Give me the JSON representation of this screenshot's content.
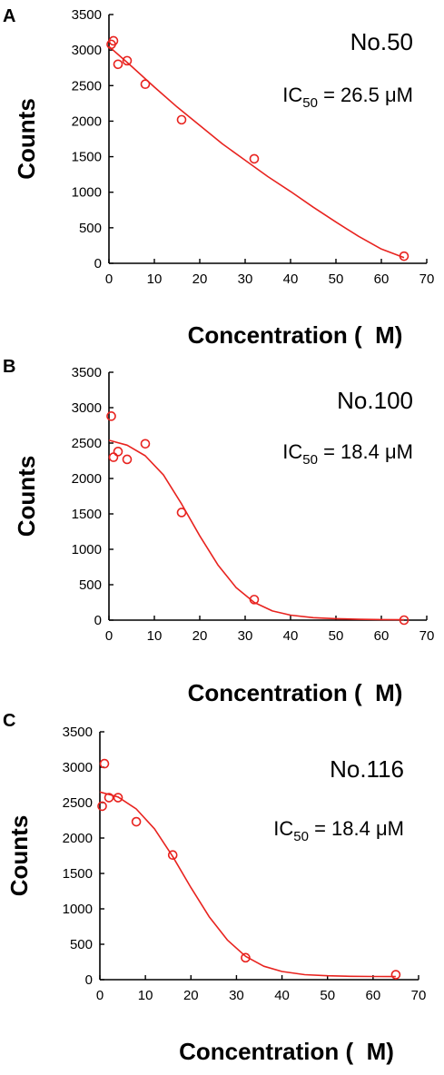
{
  "chart_data": [
    {
      "panel": "A",
      "type": "scatter",
      "title": "No.50",
      "ic50_prefix": "IC",
      "ic50_sub": "50",
      "ic50_value": " = 26.5 μM",
      "xlabel": "Concentration (  M)",
      "ylabel": "Counts",
      "xlim": [
        0,
        70
      ],
      "ylim": [
        0,
        3500
      ],
      "xticks": [
        0,
        10,
        20,
        30,
        40,
        50,
        60,
        70
      ],
      "yticks": [
        0,
        500,
        1000,
        1500,
        2000,
        2500,
        3000,
        3500
      ],
      "series": [
        {
          "points": [
            [
              0.5,
              3080
            ],
            [
              1,
              3130
            ],
            [
              2,
              2800
            ],
            [
              4,
              2850
            ],
            [
              8,
              2520
            ],
            [
              16,
              2020
            ],
            [
              32,
              1470
            ],
            [
              65,
              100
            ]
          ],
          "fit": [
            [
              0,
              3050
            ],
            [
              5,
              2770
            ],
            [
              10,
              2480
            ],
            [
              15,
              2200
            ],
            [
              20,
              1940
            ],
            [
              25,
              1680
            ],
            [
              30,
              1450
            ],
            [
              35,
              1220
            ],
            [
              40,
              1010
            ],
            [
              45,
              790
            ],
            [
              50,
              580
            ],
            [
              55,
              380
            ],
            [
              60,
              200
            ],
            [
              65,
              80
            ]
          ]
        }
      ],
      "color": "#e8231f",
      "grid": false
    },
    {
      "panel": "B",
      "type": "scatter",
      "title": "No.100",
      "ic50_prefix": "IC",
      "ic50_sub": "50",
      "ic50_value": " = 18.4 μM",
      "xlabel": "Concentration (  M)",
      "ylabel": "Counts",
      "xlim": [
        0,
        70
      ],
      "ylim": [
        0,
        3500
      ],
      "xticks": [
        0,
        10,
        20,
        30,
        40,
        50,
        60,
        70
      ],
      "yticks": [
        0,
        500,
        1000,
        1500,
        2000,
        2500,
        3000,
        3500
      ],
      "series": [
        {
          "points": [
            [
              0.5,
              2880
            ],
            [
              1,
              2300
            ],
            [
              2,
              2380
            ],
            [
              4,
              2270
            ],
            [
              8,
              2490
            ],
            [
              16,
              1520
            ],
            [
              32,
              290
            ],
            [
              65,
              0
            ]
          ],
          "fit": [
            [
              0,
              2540
            ],
            [
              4,
              2470
            ],
            [
              8,
              2320
            ],
            [
              12,
              2050
            ],
            [
              16,
              1640
            ],
            [
              20,
              1190
            ],
            [
              24,
              780
            ],
            [
              28,
              460
            ],
            [
              32,
              250
            ],
            [
              36,
              130
            ],
            [
              40,
              70
            ],
            [
              45,
              35
            ],
            [
              50,
              20
            ],
            [
              55,
              12
            ],
            [
              60,
              8
            ],
            [
              65,
              5
            ]
          ]
        }
      ],
      "color": "#e8231f",
      "grid": false
    },
    {
      "panel": "C",
      "type": "scatter",
      "title": "No.116",
      "ic50_prefix": "IC",
      "ic50_sub": "50",
      "ic50_value": " = 18.4 μM",
      "xlabel": "Concentration (  M)",
      "ylabel": "Counts",
      "xlim": [
        0,
        70
      ],
      "ylim": [
        0,
        3500
      ],
      "xticks": [
        0,
        10,
        20,
        30,
        40,
        50,
        60,
        70
      ],
      "yticks": [
        0,
        500,
        1000,
        1500,
        2000,
        2500,
        3000,
        3500
      ],
      "series": [
        {
          "points": [
            [
              0.5,
              2450
            ],
            [
              1,
              3050
            ],
            [
              2,
              2570
            ],
            [
              4,
              2570
            ],
            [
              8,
              2230
            ],
            [
              16,
              1760
            ],
            [
              32,
              310
            ],
            [
              65,
              70
            ]
          ],
          "fit": [
            [
              0,
              2650
            ],
            [
              4,
              2580
            ],
            [
              8,
              2410
            ],
            [
              12,
              2130
            ],
            [
              16,
              1740
            ],
            [
              20,
              1300
            ],
            [
              24,
              890
            ],
            [
              28,
              560
            ],
            [
              32,
              330
            ],
            [
              36,
              190
            ],
            [
              40,
              115
            ],
            [
              45,
              70
            ],
            [
              50,
              55
            ],
            [
              55,
              48
            ],
            [
              60,
              45
            ],
            [
              65,
              44
            ]
          ]
        }
      ],
      "color": "#e8231f",
      "grid": false
    }
  ]
}
